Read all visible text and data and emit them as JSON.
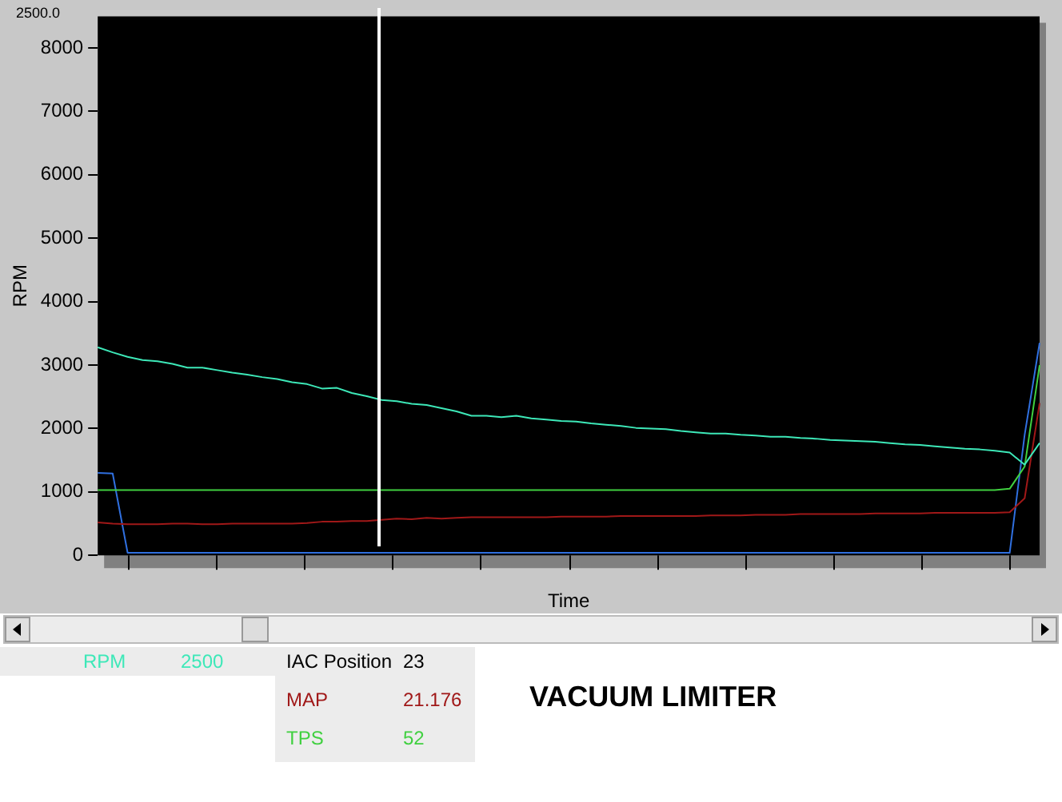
{
  "chart_data": {
    "type": "line",
    "title": "VACUUM LIMITER",
    "xlabel": "Time",
    "ylabel": "RPM",
    "categories": [
      null,
      null,
      null,
      null,
      null,
      null,
      null,
      null,
      null,
      null,
      null,
      null,
      null,
      null,
      null,
      null,
      null,
      null,
      null,
      null,
      null,
      null,
      null,
      null,
      null,
      null,
      null,
      null,
      null,
      null,
      null,
      null,
      null,
      null,
      null,
      null,
      null,
      null,
      null,
      null,
      null,
      null,
      null,
      null,
      null,
      null,
      null,
      null,
      null,
      null,
      null,
      null,
      null,
      null,
      null,
      null,
      null,
      null,
      null,
      null,
      null,
      null,
      null,
      null
    ],
    "series": [
      {
        "name": "RPM",
        "color": "#3de8b8",
        "values": [
          3280,
          3200,
          3130,
          3080,
          3060,
          3020,
          2960,
          2960,
          2920,
          2880,
          2850,
          2810,
          2780,
          2730,
          2700,
          2630,
          2640,
          2560,
          2510,
          2450,
          2430,
          2390,
          2370,
          2320,
          2270,
          2200,
          2200,
          2180,
          2200,
          2160,
          2140,
          2120,
          2110,
          2080,
          2060,
          2040,
          2010,
          2000,
          1990,
          1960,
          1940,
          1920,
          1920,
          1900,
          1890,
          1870,
          1870,
          1850,
          1840,
          1820,
          1810,
          1800,
          1790,
          1770,
          1750,
          1740,
          1720,
          1700,
          1680,
          1670,
          1650,
          1620,
          1430,
          1770
        ]
      },
      {
        "name": "MAP",
        "color": "#a01818",
        "values": [
          520,
          500,
          490,
          490,
          490,
          500,
          500,
          490,
          490,
          500,
          500,
          500,
          500,
          500,
          510,
          530,
          530,
          540,
          540,
          560,
          580,
          570,
          590,
          580,
          590,
          600,
          600,
          600,
          600,
          600,
          600,
          610,
          610,
          610,
          610,
          620,
          620,
          620,
          620,
          620,
          620,
          630,
          630,
          630,
          640,
          640,
          640,
          650,
          650,
          650,
          650,
          650,
          660,
          660,
          660,
          660,
          670,
          670,
          670,
          670,
          670,
          680,
          900,
          2400
        ]
      },
      {
        "name": "TPS",
        "color": "#40d040",
        "values": [
          1030,
          1030,
          1030,
          1030,
          1030,
          1030,
          1030,
          1030,
          1030,
          1030,
          1030,
          1030,
          1030,
          1030,
          1030,
          1030,
          1030,
          1030,
          1030,
          1030,
          1030,
          1030,
          1030,
          1030,
          1030,
          1030,
          1030,
          1030,
          1030,
          1030,
          1030,
          1030,
          1030,
          1030,
          1030,
          1030,
          1030,
          1030,
          1030,
          1030,
          1030,
          1030,
          1030,
          1030,
          1030,
          1030,
          1030,
          1030,
          1030,
          1030,
          1030,
          1030,
          1030,
          1030,
          1030,
          1030,
          1030,
          1030,
          1030,
          1030,
          1030,
          1050,
          1400,
          3000
        ]
      },
      {
        "color": "#3070e0",
        "values": [
          1300,
          1290,
          40,
          40,
          40,
          40,
          40,
          40,
          40,
          40,
          40,
          40,
          40,
          40,
          40,
          40,
          40,
          40,
          40,
          40,
          40,
          40,
          40,
          40,
          40,
          40,
          40,
          40,
          40,
          40,
          40,
          40,
          40,
          40,
          40,
          40,
          40,
          40,
          40,
          40,
          40,
          40,
          40,
          40,
          40,
          40,
          40,
          40,
          40,
          40,
          40,
          40,
          40,
          40,
          40,
          40,
          40,
          40,
          40,
          40,
          40,
          40,
          1900,
          3350
        ]
      }
    ],
    "ylim": [
      0,
      8500
    ],
    "yticks": [
      0,
      1000,
      2000,
      3000,
      4000,
      5000,
      6000,
      7000,
      8000
    ],
    "tick_labels": "y",
    "grid": false,
    "annotations": [
      "2500.0",
      "IAC Position",
      "2500",
      "23",
      "21.176",
      "52"
    ]
  }
}
